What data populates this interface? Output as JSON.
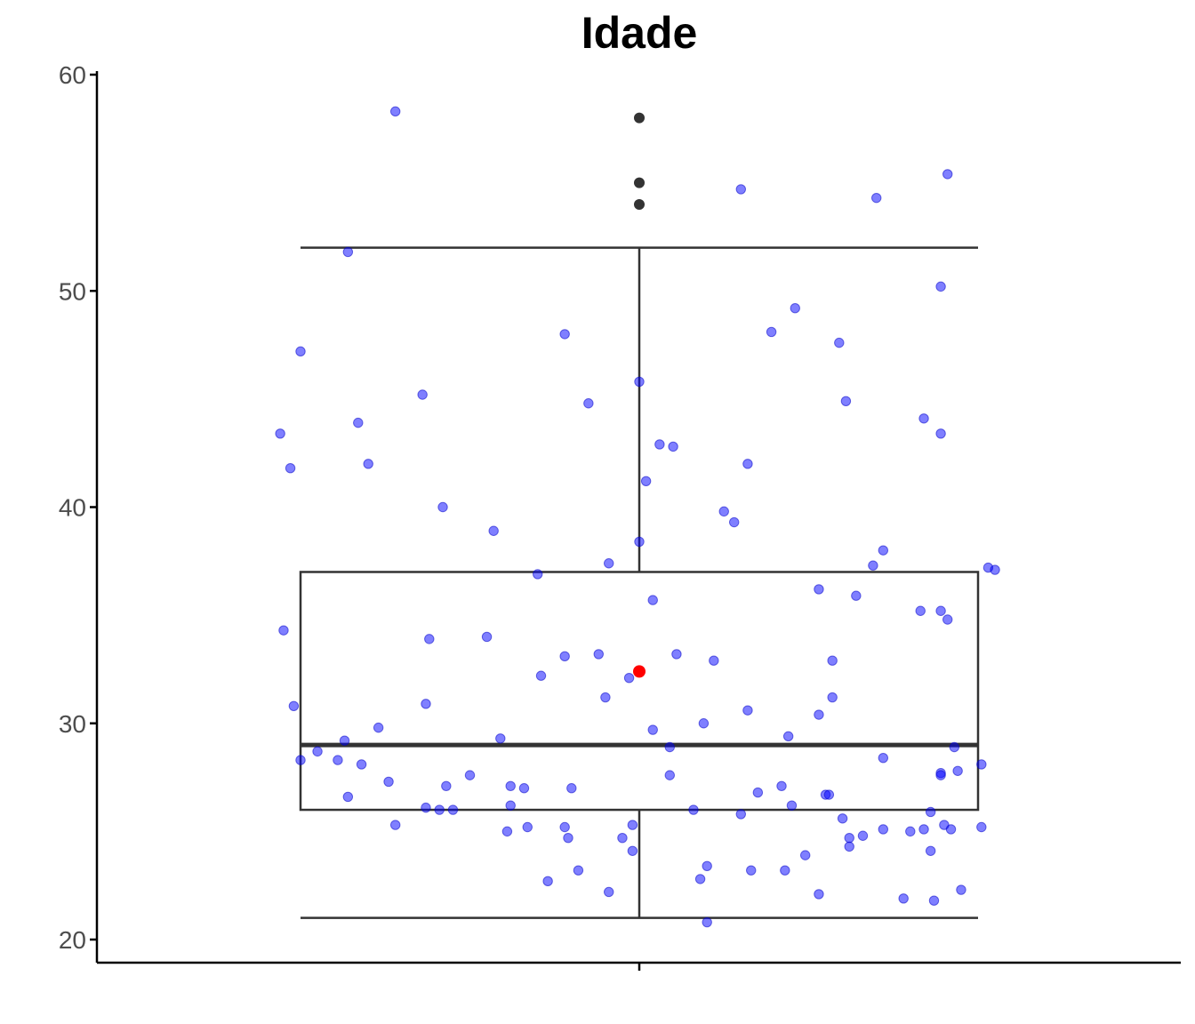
{
  "chart_data": {
    "type": "box",
    "title": "Idade",
    "xlabel": "",
    "ylabel": "",
    "ylim": [
      19,
      60
    ],
    "y_ticks": [
      20,
      30,
      40,
      50,
      60
    ],
    "y_tick_labels": [
      "20",
      "30",
      "40",
      "50",
      "60"
    ],
    "grid": false,
    "box": {
      "whisker_low": 21,
      "q1": 26,
      "median": 29,
      "q3": 37,
      "whisker_high": 52
    },
    "outliers": [
      54,
      55,
      58
    ],
    "mean": 32.4,
    "colors": {
      "points": "#0000ff",
      "mean": "#ff0000",
      "box": "#333333"
    },
    "jitter_points": [
      {
        "x": -0.72,
        "y": 58.3
      },
      {
        "x": -0.86,
        "y": 51.8
      },
      {
        "x": -1.0,
        "y": 47.2
      },
      {
        "x": -0.64,
        "y": 45.2
      },
      {
        "x": -1.06,
        "y": 43.4
      },
      {
        "x": -0.83,
        "y": 43.9
      },
      {
        "x": -1.03,
        "y": 41.8
      },
      {
        "x": -0.8,
        "y": 42.0
      },
      {
        "x": -0.58,
        "y": 40.0
      },
      {
        "x": -0.43,
        "y": 38.9
      },
      {
        "x": -0.3,
        "y": 36.9
      },
      {
        "x": -1.05,
        "y": 34.3
      },
      {
        "x": -0.62,
        "y": 33.9
      },
      {
        "x": -0.45,
        "y": 34.0
      },
      {
        "x": -1.02,
        "y": 30.8
      },
      {
        "x": -0.63,
        "y": 30.9
      },
      {
        "x": -0.77,
        "y": 29.8
      },
      {
        "x": -0.87,
        "y": 29.2
      },
      {
        "x": -0.41,
        "y": 29.3
      },
      {
        "x": -0.95,
        "y": 28.7
      },
      {
        "x": -1.0,
        "y": 28.3
      },
      {
        "x": -0.89,
        "y": 28.3
      },
      {
        "x": -0.82,
        "y": 28.1
      },
      {
        "x": -0.74,
        "y": 27.3
      },
      {
        "x": -0.57,
        "y": 27.1
      },
      {
        "x": -0.5,
        "y": 27.6
      },
      {
        "x": -0.38,
        "y": 27.1
      },
      {
        "x": -0.34,
        "y": 27.0
      },
      {
        "x": -0.2,
        "y": 27.0
      },
      {
        "x": -0.86,
        "y": 26.6
      },
      {
        "x": -0.63,
        "y": 26.1
      },
      {
        "x": -0.59,
        "y": 26.0
      },
      {
        "x": -0.55,
        "y": 26.0
      },
      {
        "x": -0.38,
        "y": 26.2
      },
      {
        "x": -0.72,
        "y": 25.3
      },
      {
        "x": -0.39,
        "y": 25.0
      },
      {
        "x": -0.33,
        "y": 25.2
      },
      {
        "x": -0.22,
        "y": 25.2
      },
      {
        "x": -0.21,
        "y": 24.7
      },
      {
        "x": -0.27,
        "y": 22.7
      },
      {
        "x": -0.18,
        "y": 23.2
      },
      {
        "x": -0.09,
        "y": 22.2
      },
      {
        "x": -0.05,
        "y": 24.7
      },
      {
        "x": -0.02,
        "y": 25.3
      },
      {
        "x": -0.02,
        "y": 24.1
      },
      {
        "x": -0.22,
        "y": 48.0
      },
      {
        "x": -0.15,
        "y": 44.8
      },
      {
        "x": -0.09,
        "y": 37.4
      },
      {
        "x": -0.29,
        "y": 32.2
      },
      {
        "x": -0.22,
        "y": 33.1
      },
      {
        "x": -0.12,
        "y": 33.2
      },
      {
        "x": -0.1,
        "y": 31.2
      },
      {
        "x": -0.03,
        "y": 32.1
      },
      {
        "x": 0.0,
        "y": 45.8
      },
      {
        "x": 0.06,
        "y": 42.9
      },
      {
        "x": 0.1,
        "y": 42.8
      },
      {
        "x": 0.02,
        "y": 41.2
      },
      {
        "x": 0.0,
        "y": 38.4
      },
      {
        "x": 0.04,
        "y": 35.7
      },
      {
        "x": 0.11,
        "y": 33.2
      },
      {
        "x": 0.04,
        "y": 29.7
      },
      {
        "x": 0.09,
        "y": 28.9
      },
      {
        "x": 0.19,
        "y": 30.0
      },
      {
        "x": 0.22,
        "y": 32.9
      },
      {
        "x": 0.09,
        "y": 27.6
      },
      {
        "x": 0.16,
        "y": 26.0
      },
      {
        "x": 0.18,
        "y": 22.8
      },
      {
        "x": 0.2,
        "y": 23.4
      },
      {
        "x": 0.2,
        "y": 20.8
      },
      {
        "x": 0.3,
        "y": 54.7
      },
      {
        "x": 0.25,
        "y": 39.8
      },
      {
        "x": 0.28,
        "y": 39.3
      },
      {
        "x": 0.32,
        "y": 42.0
      },
      {
        "x": 0.32,
        "y": 30.6
      },
      {
        "x": 0.3,
        "y": 25.8
      },
      {
        "x": 0.35,
        "y": 26.8
      },
      {
        "x": 0.33,
        "y": 23.2
      },
      {
        "x": 0.39,
        "y": 48.1
      },
      {
        "x": 0.46,
        "y": 49.2
      },
      {
        "x": 0.44,
        "y": 29.4
      },
      {
        "x": 0.42,
        "y": 27.1
      },
      {
        "x": 0.45,
        "y": 26.2
      },
      {
        "x": 0.43,
        "y": 23.2
      },
      {
        "x": 0.49,
        "y": 23.9
      },
      {
        "x": 0.53,
        "y": 36.2
      },
      {
        "x": 0.53,
        "y": 30.4
      },
      {
        "x": 0.55,
        "y": 26.7
      },
      {
        "x": 0.56,
        "y": 26.7
      },
      {
        "x": 0.53,
        "y": 22.1
      },
      {
        "x": 0.59,
        "y": 47.6
      },
      {
        "x": 0.61,
        "y": 44.9
      },
      {
        "x": 0.57,
        "y": 32.9
      },
      {
        "x": 0.57,
        "y": 31.2
      },
      {
        "x": 0.6,
        "y": 25.6
      },
      {
        "x": 0.62,
        "y": 24.7
      },
      {
        "x": 0.62,
        "y": 24.3
      },
      {
        "x": 0.64,
        "y": 35.9
      },
      {
        "x": 0.66,
        "y": 24.8
      },
      {
        "x": 0.7,
        "y": 54.3
      },
      {
        "x": 0.72,
        "y": 38.0
      },
      {
        "x": 0.69,
        "y": 37.3
      },
      {
        "x": 0.72,
        "y": 28.4
      },
      {
        "x": 0.72,
        "y": 25.1
      },
      {
        "x": 0.8,
        "y": 25.0
      },
      {
        "x": 0.78,
        "y": 21.9
      },
      {
        "x": 0.84,
        "y": 25.1
      },
      {
        "x": 0.83,
        "y": 35.2
      },
      {
        "x": 0.84,
        "y": 44.1
      },
      {
        "x": 0.89,
        "y": 50.2
      },
      {
        "x": 0.89,
        "y": 43.4
      },
      {
        "x": 0.89,
        "y": 35.2
      },
      {
        "x": 0.91,
        "y": 34.8
      },
      {
        "x": 0.91,
        "y": 55.4
      },
      {
        "x": 0.86,
        "y": 25.9
      },
      {
        "x": 0.86,
        "y": 24.1
      },
      {
        "x": 0.87,
        "y": 21.8
      },
      {
        "x": 0.89,
        "y": 27.7
      },
      {
        "x": 0.89,
        "y": 27.6
      },
      {
        "x": 0.9,
        "y": 25.3
      },
      {
        "x": 0.92,
        "y": 25.1
      },
      {
        "x": 0.93,
        "y": 28.9
      },
      {
        "x": 0.94,
        "y": 27.8
      },
      {
        "x": 0.95,
        "y": 22.3
      },
      {
        "x": 1.01,
        "y": 28.1
      },
      {
        "x": 1.01,
        "y": 25.2
      },
      {
        "x": 1.03,
        "y": 37.2
      },
      {
        "x": 1.05,
        "y": 37.1
      }
    ]
  }
}
